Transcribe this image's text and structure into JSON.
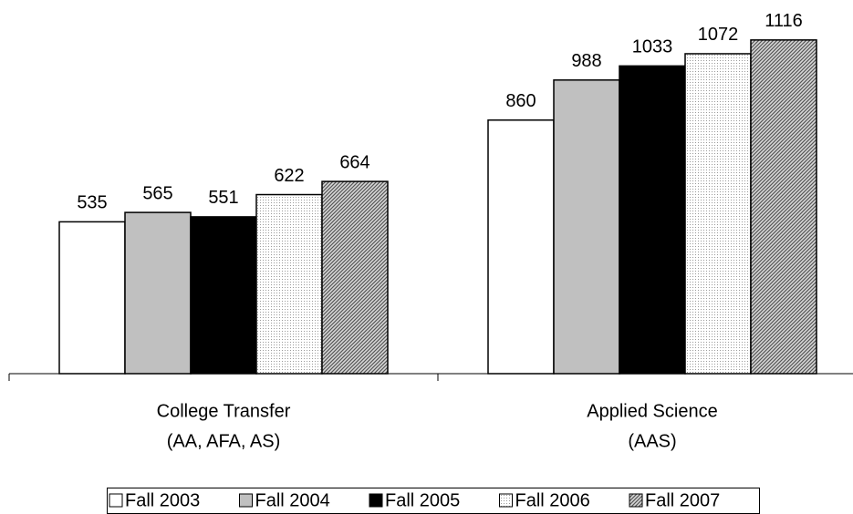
{
  "chart_data": {
    "type": "bar",
    "categories": [
      [
        "College Transfer",
        "(AA, AFA, AS)"
      ],
      [
        "Applied Science",
        "(AAS)"
      ]
    ],
    "series": [
      {
        "name": "Fall 2003",
        "color": "#ffffff",
        "values": [
          535,
          860
        ]
      },
      {
        "name": "Fall 2004",
        "color": "#c0c0c0",
        "values": [
          565,
          988
        ]
      },
      {
        "name": "Fall 2005",
        "color": "#000000",
        "values": [
          551,
          1033
        ]
      },
      {
        "name": "Fall 2006",
        "color": "#eeeeee",
        "pattern": "dots",
        "values": [
          622,
          1072
        ]
      },
      {
        "name": "Fall 2007",
        "color": "#a8a8a8",
        "pattern": "hatch",
        "values": [
          664,
          1116
        ]
      }
    ],
    "ylim": [
      50,
      1200
    ],
    "legend": "bottom"
  }
}
